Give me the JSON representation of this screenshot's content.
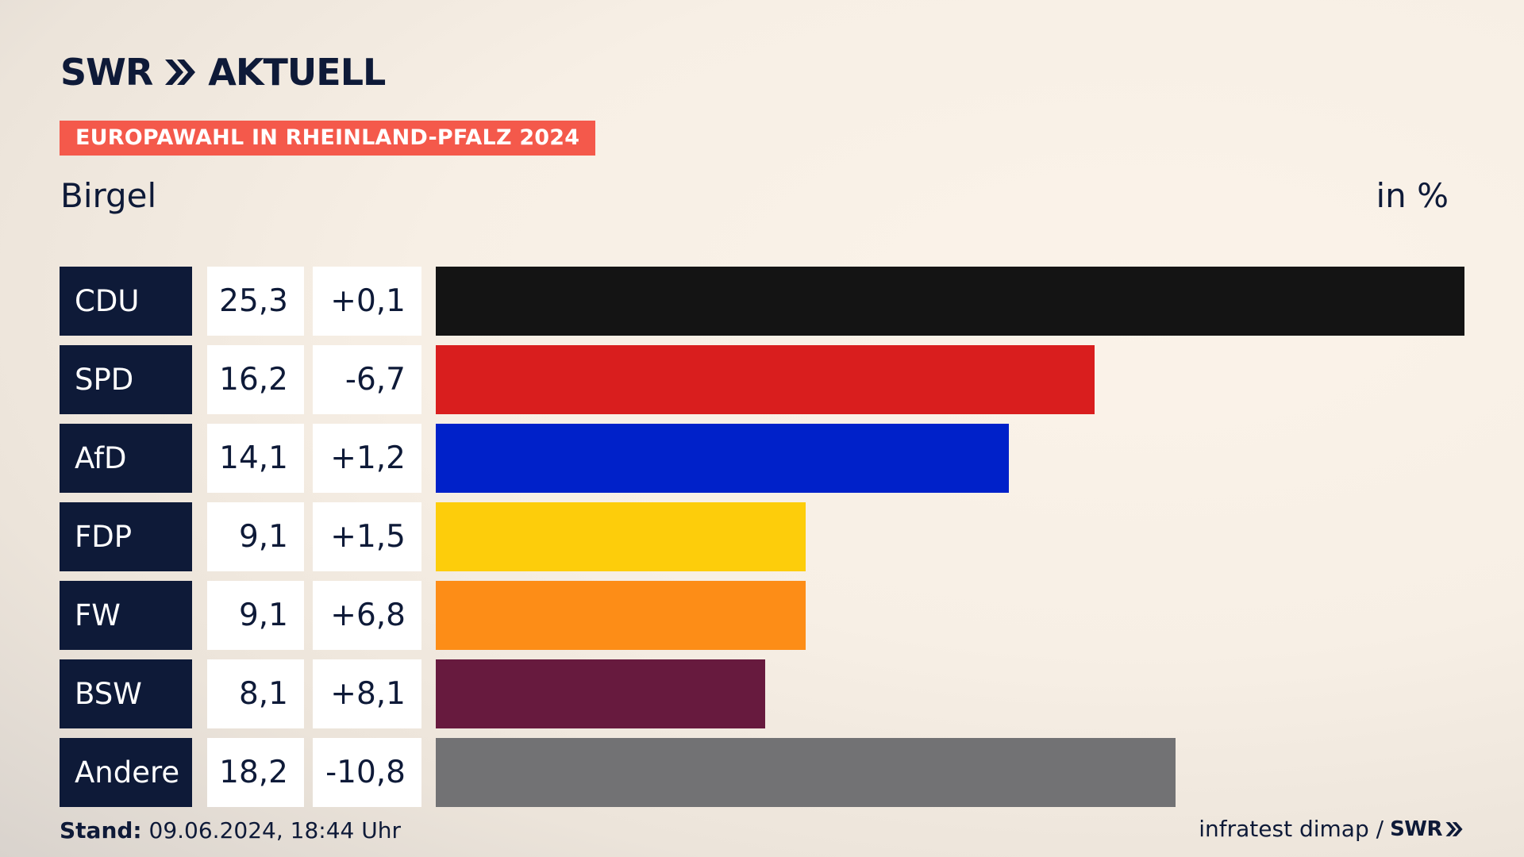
{
  "header": {
    "logo_text": "SWR",
    "logo_suffix": "AKTUELL",
    "tag": "EUROPAWAHL IN RHEINLAND-PFALZ 2024",
    "place": "Birgel",
    "unit": "in %"
  },
  "chart_data": {
    "type": "bar",
    "orientation": "horizontal",
    "categories": [
      "CDU",
      "SPD",
      "AfD",
      "FDP",
      "FW",
      "BSW",
      "Andere"
    ],
    "values": [
      25.3,
      16.2,
      14.1,
      9.1,
      9.1,
      8.1,
      18.2
    ],
    "value_labels": [
      "25,3",
      "16,2",
      "14,1",
      "9,1",
      "9,1",
      "8,1",
      "18,2"
    ],
    "diff_labels": [
      "+0,1",
      "-6,7",
      "+1,2",
      "+1,5",
      "+6,8",
      "+8,1",
      "-10,8"
    ],
    "colors": [
      "#141414",
      "#d91e1e",
      "#0021c9",
      "#fdcd0b",
      "#fd8d17",
      "#671a3e",
      "#727274"
    ],
    "xlim": [
      0,
      25.3
    ]
  },
  "footer": {
    "stand_label": "Stand:",
    "stand_value": " 09.06.2024, 18:44 Uhr",
    "source": "infratest dimap /",
    "source_logo": "SWR"
  }
}
